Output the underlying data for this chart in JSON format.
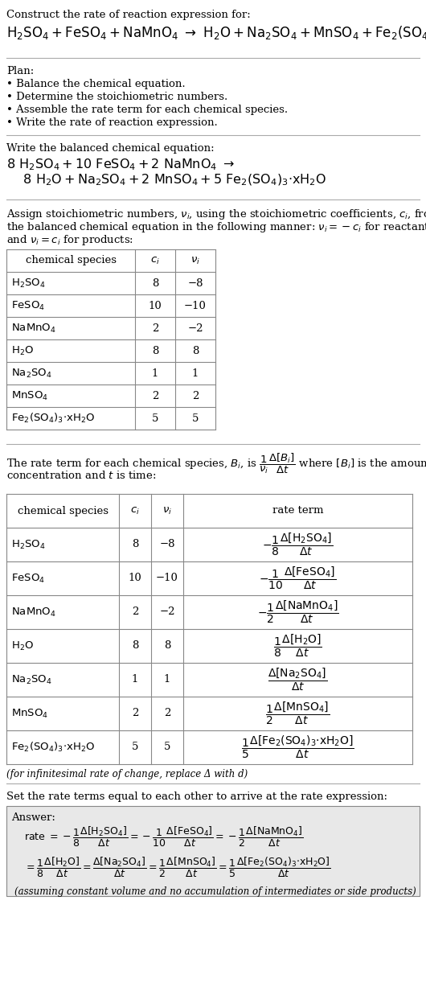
{
  "title_line1": "Construct the rate of reaction expression for:",
  "plan_header": "Plan:",
  "plan_items": [
    "• Balance the chemical equation.",
    "• Determine the stoichiometric numbers.",
    "• Assemble the rate term for each chemical species.",
    "• Write the rate of reaction expression."
  ],
  "balanced_header": "Write the balanced chemical equation:",
  "assign_lines": [
    "Assign stoichiometric numbers, $\\nu_i$, using the stoichiometric coefficients, $c_i$, from",
    "the balanced chemical equation in the following manner: $\\nu_i = -c_i$ for reactants",
    "and $\\nu_i = c_i$ for products:"
  ],
  "table1_headers": [
    "chemical species",
    "$c_i$",
    "$\\nu_i$"
  ],
  "table2_headers": [
    "chemical species",
    "$c_i$",
    "$\\nu_i$",
    "rate term"
  ],
  "infinitesimal_note": "(for infinitesimal rate of change, replace Δ with d)",
  "set_equal_text": "Set the rate terms equal to each other to arrive at the rate expression:",
  "answer_box_label": "Answer:",
  "answer_note": "(assuming constant volume and no accumulation of intermediates or side products)",
  "bg_color": "#ffffff",
  "text_color": "#000000",
  "table_border_color": "#888888",
  "answer_box_color": "#e8e8e8",
  "species_labels": [
    "$\\mathrm{H_2SO_4}$",
    "$\\mathrm{FeSO_4}$",
    "$\\mathrm{NaMnO_4}$",
    "$\\mathrm{H_2O}$",
    "$\\mathrm{Na_2SO_4}$",
    "$\\mathrm{MnSO_4}$",
    "$\\mathrm{Fe_2(SO_4)_3{\\cdot}xH_2O}$"
  ],
  "ci_vals": [
    "8",
    "10",
    "2",
    "8",
    "1",
    "2",
    "5"
  ],
  "nu_vals": [
    "−8",
    "−10",
    "−2",
    "8",
    "1",
    "2",
    "5"
  ],
  "rate_terms": [
    "$-\\dfrac{1}{8}\\dfrac{\\Delta[\\mathrm{H_2SO_4}]}{\\Delta t}$",
    "$-\\dfrac{1}{10}\\dfrac{\\Delta[\\mathrm{FeSO_4}]}{\\Delta t}$",
    "$-\\dfrac{1}{2}\\dfrac{\\Delta[\\mathrm{NaMnO_4}]}{\\Delta t}$",
    "$\\dfrac{1}{8}\\dfrac{\\Delta[\\mathrm{H_2O}]}{\\Delta t}$",
    "$\\dfrac{\\Delta[\\mathrm{Na_2SO_4}]}{\\Delta t}$",
    "$\\dfrac{1}{2}\\dfrac{\\Delta[\\mathrm{MnSO_4}]}{\\Delta t}$",
    "$\\dfrac{1}{5}\\dfrac{\\Delta[\\mathrm{Fe_2(SO_4)_3{\\cdot}xH_2O}]}{\\Delta t}$"
  ]
}
